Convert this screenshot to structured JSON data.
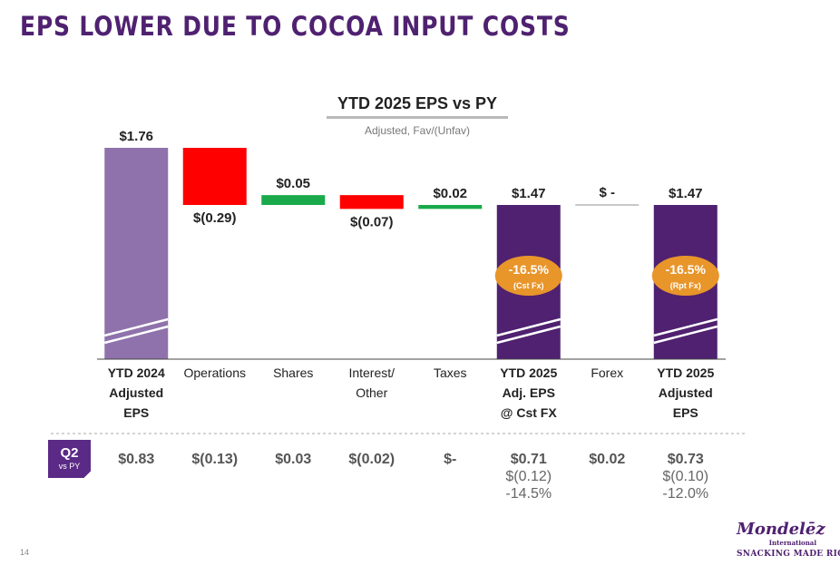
{
  "headline": "EPS LOWER DUE TO COCOA INPUT COSTS",
  "chart_data": {
    "type": "bar",
    "subtype": "waterfall",
    "title": "YTD 2025 EPS vs PY",
    "subtitle": "Adjusted, Fav/(Unfav)",
    "ylim": [
      0,
      1.76
    ],
    "grid": false,
    "categories": [
      [
        "YTD 2024",
        "Adjusted",
        "EPS"
      ],
      [
        "Operations"
      ],
      [
        "Shares"
      ],
      [
        "Interest/",
        "Other"
      ],
      [
        "Taxes"
      ],
      [
        "YTD 2025",
        "Adj. EPS",
        "@ Cst FX"
      ],
      [
        "Forex"
      ],
      [
        "YTD 2025",
        "Adjusted",
        "EPS"
      ]
    ],
    "category_bold": [
      true,
      false,
      false,
      false,
      false,
      true,
      false,
      true
    ],
    "steps": [
      {
        "kind": "total",
        "start": 0,
        "end": 1.76,
        "label": "$1.76",
        "label_pos": "above",
        "color": "#8f72ab",
        "broken_axis": true
      },
      {
        "kind": "delta",
        "start": 1.76,
        "end": 1.47,
        "label": "$(0.29)",
        "label_pos": "below",
        "color": "#ff0000"
      },
      {
        "kind": "delta",
        "start": 1.47,
        "end": 1.52,
        "label": "$0.05",
        "label_pos": "above",
        "color": "#1aaa4b"
      },
      {
        "kind": "delta",
        "start": 1.52,
        "end": 1.45,
        "label": "$(0.07)",
        "label_pos": "below",
        "color": "#ff0000"
      },
      {
        "kind": "delta",
        "start": 1.45,
        "end": 1.47,
        "label": "$0.02",
        "label_pos": "above",
        "color": "#1aaa4b"
      },
      {
        "kind": "total",
        "start": 0,
        "end": 1.47,
        "label": "$1.47",
        "label_pos": "above",
        "color": "#4f2170",
        "broken_axis": true,
        "badge": {
          "pct": "-16.5%",
          "sub": "(Cst Fx)"
        }
      },
      {
        "kind": "delta",
        "start": 1.47,
        "end": 1.47,
        "label": "$ -",
        "label_pos": "above",
        "color": "#c8c8c8"
      },
      {
        "kind": "total",
        "start": 0,
        "end": 1.47,
        "label": "$1.47",
        "label_pos": "above",
        "color": "#4f2170",
        "broken_axis": true,
        "badge": {
          "pct": "-16.5%",
          "sub": "(Rpt Fx)"
        }
      }
    ],
    "colors": {
      "increase": "#1aaa4b",
      "decrease": "#ff0000",
      "total_prior": "#8f72ab",
      "total_current": "#4f2170",
      "badge": "#e8952a"
    }
  },
  "q2": {
    "label": "Q2",
    "sub": "vs PY",
    "values": [
      {
        "main": "$0.83",
        "extra": []
      },
      {
        "main": "$(0.13)",
        "extra": []
      },
      {
        "main": "$0.03",
        "extra": []
      },
      {
        "main": "$(0.02)",
        "extra": []
      },
      {
        "main": "$-",
        "extra": []
      },
      {
        "main": "$0.71",
        "extra": [
          "$(0.12)",
          "-14.5%"
        ]
      },
      {
        "main": "$0.02",
        "extra": []
      },
      {
        "main": "$0.73",
        "extra": [
          "$(0.10)",
          "-12.0%"
        ]
      }
    ]
  },
  "page_number": "14",
  "logo": {
    "name": "Mondelēz",
    "sub": "International",
    "tagline": "SNACKING MADE RIGHT"
  }
}
